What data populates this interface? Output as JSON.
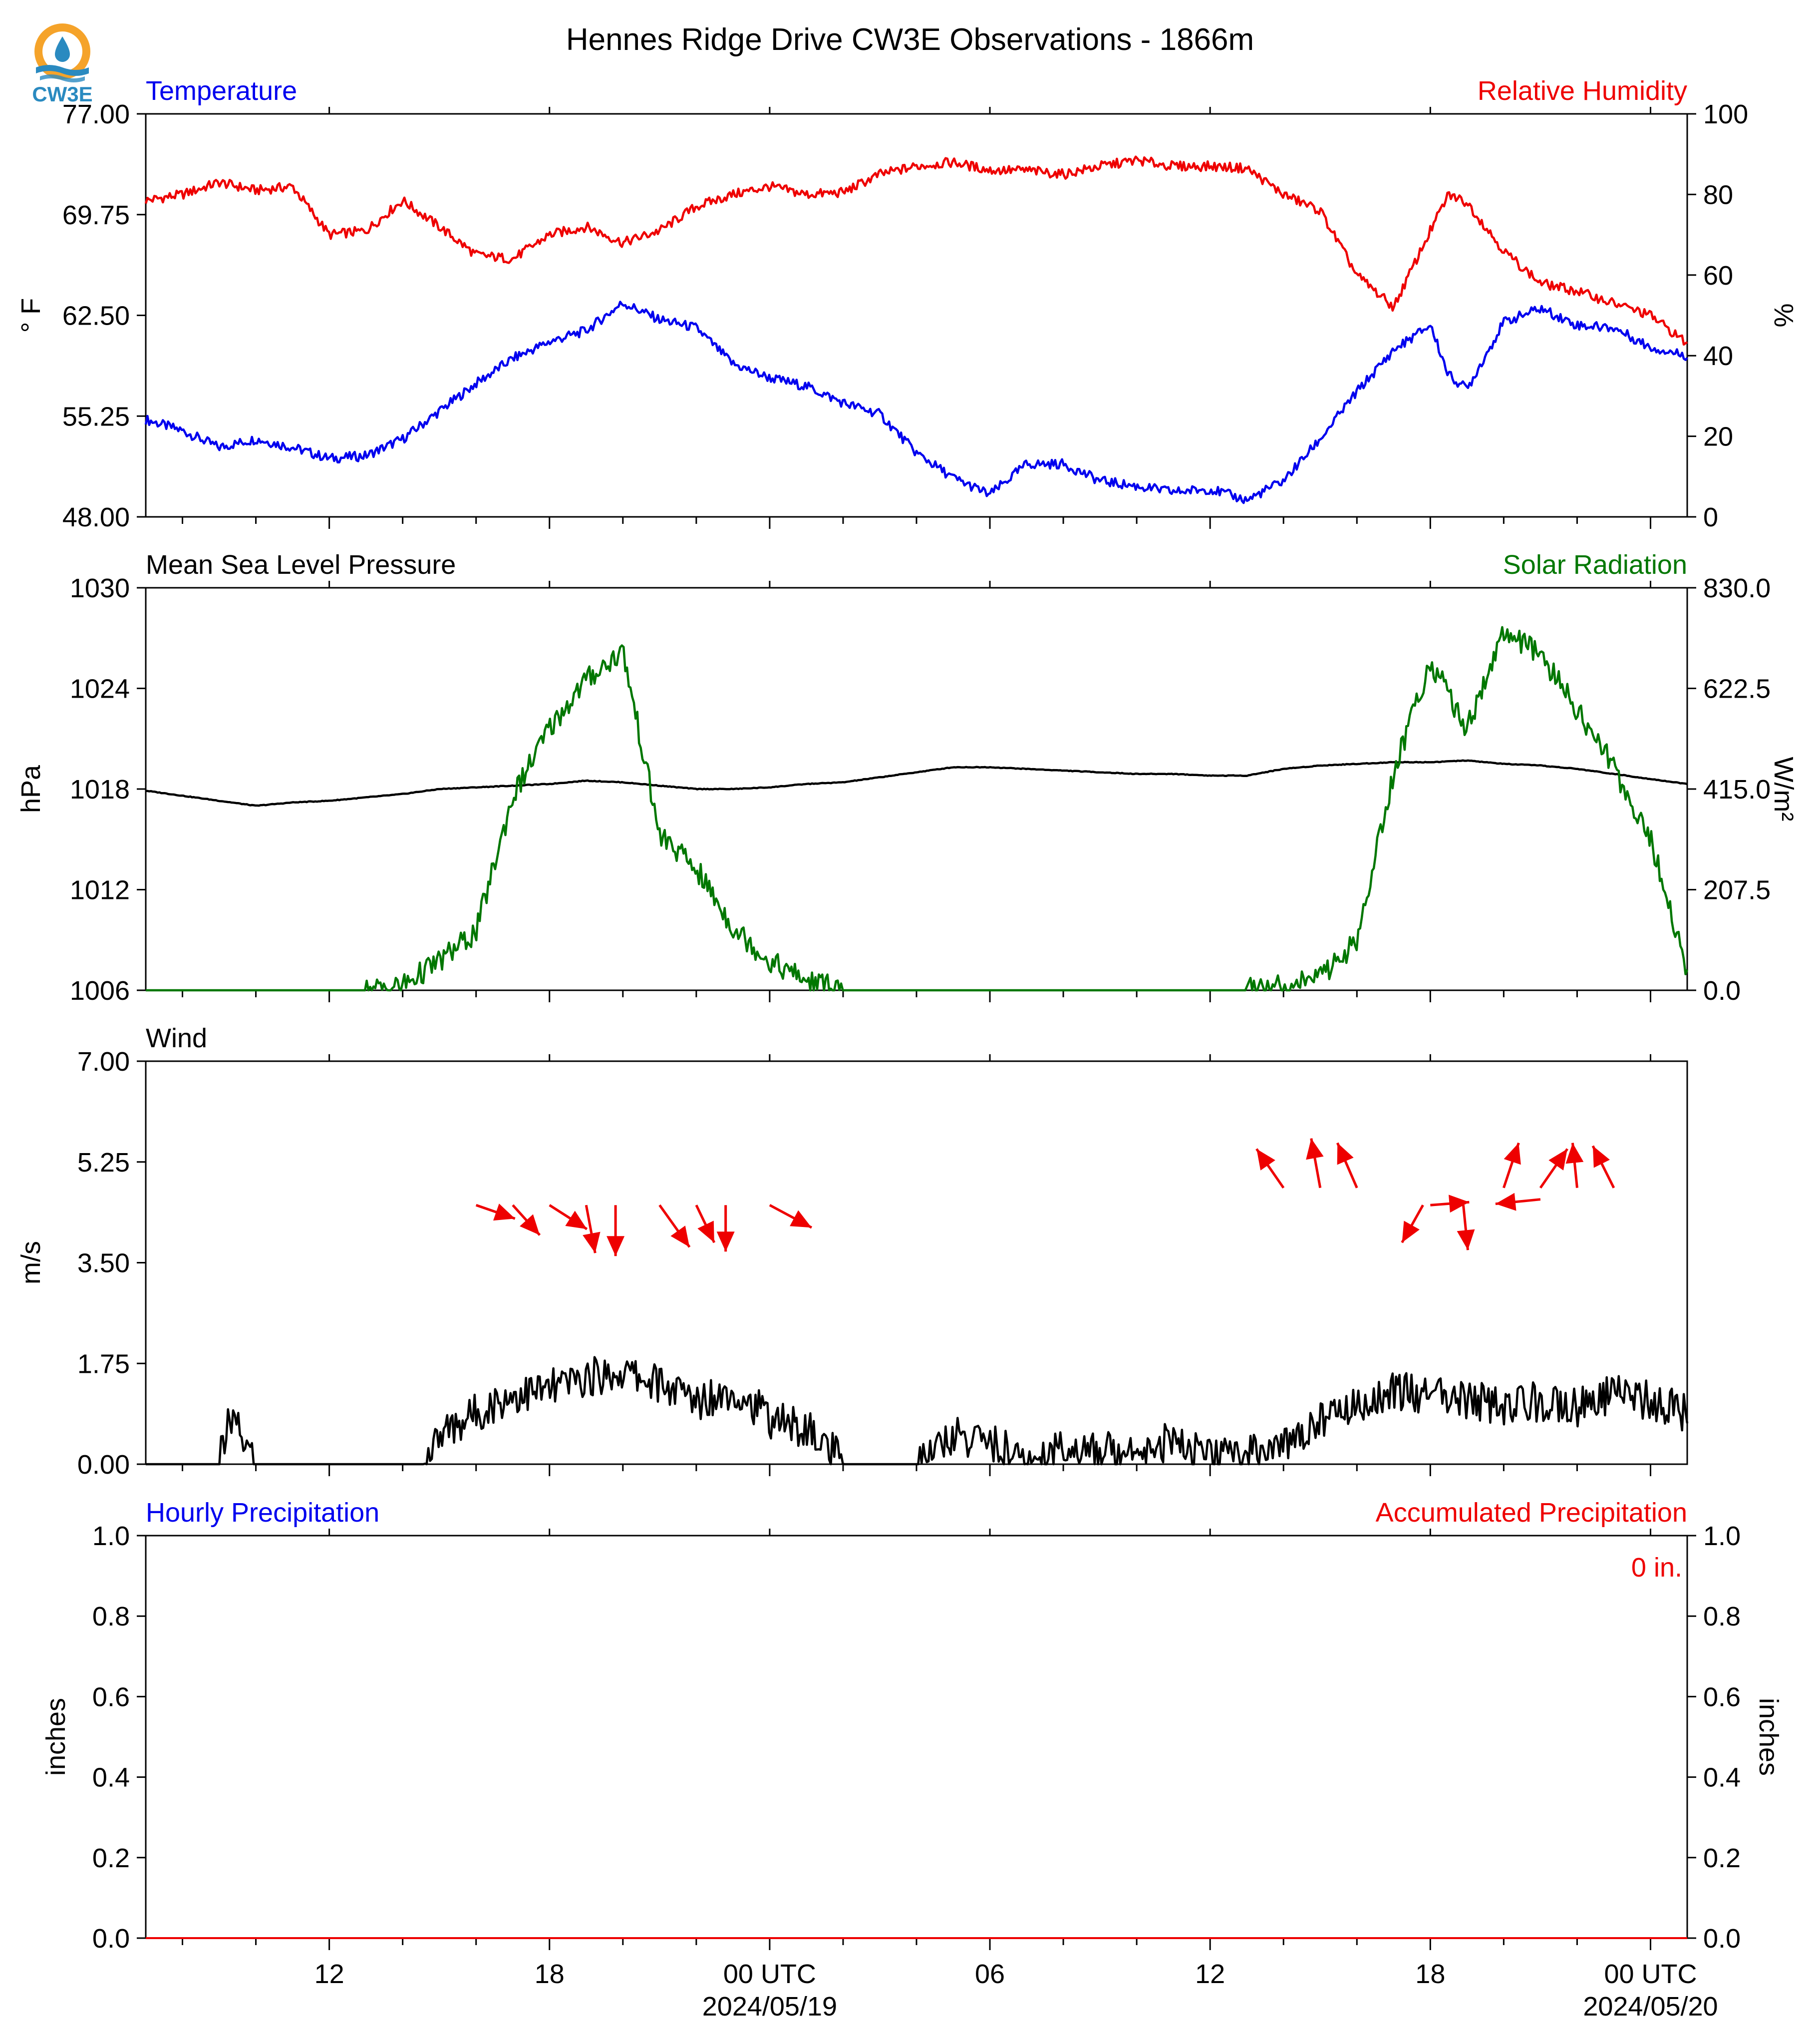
{
  "title": "Hennes Ridge Drive CW3E Observations - 1866m",
  "logo_text": "CW3E",
  "colors": {
    "temperature": "#0000ee",
    "humidity": "#ee0000",
    "pressure": "#000000",
    "solar": "#007700",
    "wind_speed": "#000000",
    "wind_arrow": "#ee0000",
    "precip_hourly": "#0000ee",
    "precip_accum": "#ee0000",
    "logo_orange": "#f5a32a",
    "logo_blue": "#2a8ac0"
  },
  "x_axis": {
    "start_hours": 0,
    "end_hours": 42,
    "major_ticks": [
      {
        "h": 5,
        "label": "12",
        "date": ""
      },
      {
        "h": 11,
        "label": "18",
        "date": ""
      },
      {
        "h": 17,
        "label": "00 UTC",
        "date": "2024/05/19"
      },
      {
        "h": 23,
        "label": "06",
        "date": ""
      },
      {
        "h": 29,
        "label": "12",
        "date": ""
      },
      {
        "h": 35,
        "label": "18",
        "date": ""
      },
      {
        "h": 41,
        "label": "00 UTC",
        "date": "2024/05/20"
      }
    ],
    "minor_ticks": [
      1,
      3,
      7,
      9,
      13,
      15,
      19,
      21,
      25,
      27,
      31,
      33,
      37,
      39
    ]
  },
  "chart_data": [
    {
      "type": "line",
      "name": "temperature-humidity",
      "left_title": "Temperature",
      "right_title": "Relative Humidity",
      "ylabel_left": "° F",
      "ylabel_right": "%",
      "ylim_left": [
        48,
        77
      ],
      "ylim_right": [
        0,
        100
      ],
      "yticks_left": [
        "48.00",
        "55.25",
        "62.50",
        "69.75",
        "77.00"
      ],
      "yticks_right": [
        "0",
        "20",
        "40",
        "60",
        "80",
        "100"
      ],
      "x_hours": [
        0,
        1,
        2,
        3,
        4,
        5,
        6,
        7,
        8,
        9,
        10,
        11,
        12,
        13,
        14,
        15,
        16,
        17,
        18,
        19,
        20,
        21,
        22,
        23,
        24,
        25,
        26,
        27,
        28,
        29,
        30,
        31,
        32,
        33,
        34,
        35,
        35.5,
        36,
        37,
        38,
        39,
        40,
        41,
        42
      ],
      "series": [
        {
          "name": "Temperature",
          "axis": "left",
          "color_key": "temperature",
          "values": [
            55.0,
            54.2,
            53.0,
            53.6,
            53.0,
            52.2,
            52.4,
            53.6,
            55.6,
            57.6,
            59.4,
            60.6,
            61.4,
            63.4,
            62.2,
            61.6,
            59.0,
            58.0,
            57.4,
            56.2,
            55.4,
            52.6,
            50.8,
            49.6,
            51.8,
            51.8,
            50.6,
            50.2,
            49.8,
            50.0,
            49.2,
            50.6,
            53.6,
            57.0,
            60.0,
            61.8,
            58.2,
            57.2,
            62.0,
            63.0,
            61.8,
            61.6,
            60.2,
            59.6
          ]
        },
        {
          "name": "Relative Humidity",
          "axis": "right",
          "color_key": "humidity",
          "values": [
            78.5,
            80.0,
            83.0,
            81.0,
            82.0,
            70.0,
            71.0,
            78.5,
            72.0,
            65.0,
            64.0,
            70.0,
            72.0,
            68.0,
            71.0,
            77.0,
            80.0,
            82.0,
            80.0,
            80.5,
            85.0,
            87.0,
            88.0,
            86.0,
            86.0,
            85.0,
            87.0,
            88.5,
            87.0,
            87.0,
            86.5,
            80.0,
            76.0,
            60.0,
            52.0,
            71.0,
            80.0,
            78.0,
            66.0,
            58.0,
            56.0,
            53.0,
            50.0,
            43.0
          ]
        }
      ]
    },
    {
      "type": "line",
      "name": "pressure-solar",
      "left_title": "Mean Sea Level Pressure",
      "right_title": "Solar Radiation",
      "ylabel_left": "hPa",
      "ylabel_right": "W/m²",
      "ylim_left": [
        1006,
        1030
      ],
      "ylim_right": [
        0,
        830
      ],
      "yticks_left": [
        "1006",
        "1012",
        "1018",
        "1024",
        "1030"
      ],
      "yticks_right": [
        "0.0",
        "207.5",
        "415.0",
        "622.5",
        "830.0"
      ],
      "x_hours": [
        0,
        1,
        2,
        3,
        4,
        5,
        6,
        7,
        8,
        9,
        10,
        11,
        12,
        13,
        14,
        15,
        16,
        17,
        18,
        19,
        20,
        21,
        22,
        23,
        24,
        25,
        26,
        27,
        28,
        29,
        30,
        31,
        32,
        33,
        34,
        35,
        36,
        37,
        38,
        39,
        40,
        41,
        42
      ],
      "series": [
        {
          "name": "Mean Sea Level Pressure",
          "axis": "left",
          "color_key": "pressure",
          "values": [
            1017.9,
            1017.6,
            1017.3,
            1017.0,
            1017.2,
            1017.3,
            1017.5,
            1017.7,
            1018.0,
            1018.1,
            1018.2,
            1018.3,
            1018.5,
            1018.4,
            1018.2,
            1018.0,
            1018.0,
            1018.1,
            1018.3,
            1018.4,
            1018.7,
            1019.0,
            1019.3,
            1019.3,
            1019.2,
            1019.1,
            1019.0,
            1018.9,
            1018.9,
            1018.8,
            1018.8,
            1019.2,
            1019.4,
            1019.5,
            1019.6,
            1019.6,
            1019.7,
            1019.5,
            1019.4,
            1019.2,
            1018.9,
            1018.6,
            1018.3
          ]
        },
        {
          "name": "Solar Radiation",
          "axis": "right",
          "color_key": "solar",
          "values": [
            0,
            0,
            0,
            0,
            0,
            0,
            0,
            10,
            60,
            120,
            400,
            540,
            640,
            700,
            320,
            250,
            130,
            60,
            20,
            0,
            0,
            0,
            0,
            0,
            0,
            0,
            0,
            0,
            0,
            0,
            0,
            10,
            30,
            100,
            450,
            680,
            540,
            740,
            690,
            580,
            460,
            310,
            40
          ]
        }
      ]
    },
    {
      "type": "line",
      "name": "wind",
      "left_title": "Wind",
      "ylabel_left": "m/s",
      "ylim_left": [
        0,
        7
      ],
      "yticks_left": [
        "0.00",
        "1.75",
        "3.50",
        "5.25",
        "7.00"
      ],
      "x_hours": [
        0,
        1,
        2,
        2.3,
        2.6,
        3,
        4,
        5,
        6,
        7,
        7.6,
        8,
        9,
        10,
        11,
        12,
        13,
        14,
        15,
        16,
        17,
        18,
        18.9,
        19,
        20,
        21,
        22,
        23,
        24,
        25,
        26,
        27,
        28,
        29,
        30,
        31,
        32,
        33,
        34,
        35,
        36,
        37,
        38,
        39,
        40,
        41,
        42
      ],
      "series": [
        {
          "name": "Wind Speed",
          "axis": "left",
          "color_key": "wind_speed",
          "values": [
            0,
            0,
            0,
            0.8,
            0.5,
            0,
            0,
            0,
            0,
            0,
            0,
            0.5,
            0.9,
            1.2,
            1.3,
            1.5,
            1.6,
            1.4,
            1.1,
            1.3,
            0.8,
            0.6,
            0.1,
            0,
            0,
            0,
            0.5,
            0.4,
            0,
            0.3,
            0.2,
            0.3,
            0.4,
            0.1,
            0.2,
            0.3,
            0.8,
            1.0,
            1.3,
            1.2,
            1.1,
            1.0,
            1.1,
            1.0,
            1.2,
            1.1,
            0.9
          ]
        }
      ],
      "arrows": [
        {
          "h": 9.0,
          "spd": 4.5,
          "u": 2.6,
          "v": -0.9
        },
        {
          "h": 10.0,
          "spd": 4.5,
          "u": 1.8,
          "v": -2.0
        },
        {
          "h": 11.0,
          "spd": 4.5,
          "u": 2.5,
          "v": -1.6
        },
        {
          "h": 12.0,
          "spd": 4.5,
          "u": 0.6,
          "v": -3.2
        },
        {
          "h": 12.8,
          "spd": 4.5,
          "u": 0.0,
          "v": -3.4
        },
        {
          "h": 14.0,
          "spd": 4.5,
          "u": 2.0,
          "v": -2.8
        },
        {
          "h": 15.0,
          "spd": 4.5,
          "u": 1.2,
          "v": -2.5
        },
        {
          "h": 15.8,
          "spd": 4.5,
          "u": 0.0,
          "v": -3.1
        },
        {
          "h": 17.0,
          "spd": 4.5,
          "u": 2.8,
          "v": -1.5
        },
        {
          "h": 31.0,
          "spd": 4.8,
          "u": -1.8,
          "v": 2.6
        },
        {
          "h": 32.0,
          "spd": 4.8,
          "u": -0.6,
          "v": 3.3
        },
        {
          "h": 33.0,
          "spd": 4.8,
          "u": -1.3,
          "v": 3.0
        },
        {
          "h": 34.8,
          "spd": 4.5,
          "u": -1.4,
          "v": -2.5
        },
        {
          "h": 35.0,
          "spd": 4.5,
          "u": 2.6,
          "v": 0.2
        },
        {
          "h": 35.9,
          "spd": 4.5,
          "u": 0.3,
          "v": -3.0
        },
        {
          "h": 37.0,
          "spd": 4.8,
          "u": 1.0,
          "v": 3.0
        },
        {
          "h": 38.0,
          "spd": 4.8,
          "u": 1.8,
          "v": 2.6
        },
        {
          "h": 38.0,
          "spd": 4.6,
          "u": -3.0,
          "v": -0.3
        },
        {
          "h": 39.0,
          "spd": 4.8,
          "u": -0.3,
          "v": 3.0
        },
        {
          "h": 40.0,
          "spd": 4.8,
          "u": -1.4,
          "v": 2.8
        }
      ]
    },
    {
      "type": "line",
      "name": "precipitation",
      "left_title": "Hourly Precipitation",
      "right_title": "Accumulated Precipitation",
      "ylabel_left": "inches",
      "ylabel_right": "inches",
      "ylim_left": [
        0,
        1
      ],
      "ylim_right": [
        0,
        1
      ],
      "yticks_left": [
        "0.0",
        "0.2",
        "0.4",
        "0.6",
        "0.8",
        "1.0"
      ],
      "yticks_right": [
        "0.0",
        "0.2",
        "0.4",
        "0.6",
        "0.8",
        "1.0"
      ],
      "annotation": "0 in.",
      "x_hours": [
        0,
        42
      ],
      "series": [
        {
          "name": "Hourly Precipitation",
          "axis": "left",
          "color_key": "precip_hourly",
          "values": [
            0,
            0
          ]
        },
        {
          "name": "Accumulated Precipitation",
          "axis": "right",
          "color_key": "precip_accum",
          "values": [
            0,
            0
          ]
        }
      ]
    }
  ]
}
